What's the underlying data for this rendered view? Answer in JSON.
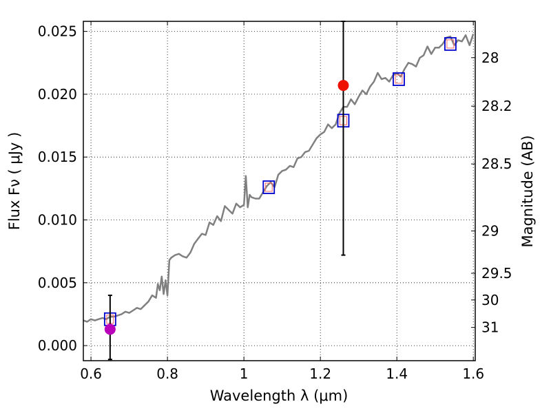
{
  "chart_data": {
    "type": "scatter",
    "xlabel": "Wavelength  λ (μm)",
    "ylabel": "Flux  Fν  ( μJy )",
    "y2label": "Magnitude (AB)",
    "xlim": [
      0.58,
      1.605
    ],
    "ylim": [
      -0.0012,
      0.0258
    ],
    "grid": true,
    "colors": {
      "spectrum": "#808080",
      "model_box": "#0000cc",
      "inner_box": "#ff6666",
      "point_red": "#ee1100",
      "point_magenta": "#bb00bb",
      "errorbar": "#000000"
    },
    "x_ticks": [
      {
        "value": 0.6,
        "label": "0.6"
      },
      {
        "value": 0.8,
        "label": "0.8"
      },
      {
        "value": 1.0,
        "label": "1"
      },
      {
        "value": 1.2,
        "label": "1.2"
      },
      {
        "value": 1.4,
        "label": "1.4"
      },
      {
        "value": 1.6,
        "label": "1.6"
      }
    ],
    "y_ticks": [
      {
        "value": 0.0,
        "label": "0.000"
      },
      {
        "value": 0.005,
        "label": "0.005"
      },
      {
        "value": 0.01,
        "label": "0.010"
      },
      {
        "value": 0.015,
        "label": "0.015"
      },
      {
        "value": 0.02,
        "label": "0.020"
      },
      {
        "value": 0.025,
        "label": "0.025"
      }
    ],
    "y2_ticks": [
      {
        "mag": 28,
        "label": "28"
      },
      {
        "mag": 28.2,
        "label": "28.2"
      },
      {
        "mag": 28.5,
        "label": "28.5"
      },
      {
        "mag": 29,
        "label": "29"
      },
      {
        "mag": 29.5,
        "label": "29.5"
      },
      {
        "mag": 30,
        "label": "30"
      },
      {
        "mag": 31,
        "label": "31"
      }
    ],
    "spectrum": {
      "x": [
        0.58,
        0.59,
        0.6,
        0.61,
        0.62,
        0.63,
        0.64,
        0.65,
        0.66,
        0.67,
        0.68,
        0.69,
        0.7,
        0.71,
        0.72,
        0.73,
        0.74,
        0.75,
        0.76,
        0.77,
        0.775,
        0.78,
        0.785,
        0.79,
        0.795,
        0.8,
        0.805,
        0.81,
        0.82,
        0.83,
        0.84,
        0.85,
        0.86,
        0.87,
        0.88,
        0.89,
        0.9,
        0.91,
        0.92,
        0.93,
        0.94,
        0.95,
        0.96,
        0.97,
        0.98,
        0.99,
        1.0,
        1.005,
        1.01,
        1.015,
        1.02,
        1.03,
        1.04,
        1.05,
        1.06,
        1.07,
        1.08,
        1.09,
        1.1,
        1.11,
        1.12,
        1.13,
        1.14,
        1.15,
        1.16,
        1.17,
        1.18,
        1.19,
        1.2,
        1.21,
        1.22,
        1.23,
        1.24,
        1.25,
        1.26,
        1.27,
        1.28,
        1.29,
        1.3,
        1.31,
        1.32,
        1.33,
        1.34,
        1.35,
        1.36,
        1.37,
        1.38,
        1.39,
        1.4,
        1.41,
        1.42,
        1.43,
        1.44,
        1.45,
        1.46,
        1.47,
        1.48,
        1.49,
        1.5,
        1.51,
        1.52,
        1.53,
        1.54,
        1.55,
        1.56,
        1.57,
        1.58,
        1.59,
        1.6
      ],
      "y": [
        0.002,
        0.0019,
        0.0021,
        0.002,
        0.0021,
        0.0022,
        0.0021,
        0.0023,
        0.0023,
        0.0024,
        0.0025,
        0.0027,
        0.0026,
        0.0028,
        0.003,
        0.0029,
        0.0032,
        0.0035,
        0.004,
        0.0038,
        0.0049,
        0.0044,
        0.0055,
        0.0041,
        0.0052,
        0.004,
        0.0068,
        0.007,
        0.0072,
        0.0073,
        0.0071,
        0.007,
        0.0074,
        0.0081,
        0.0085,
        0.0089,
        0.0088,
        0.0098,
        0.0096,
        0.0103,
        0.0099,
        0.0111,
        0.0108,
        0.0105,
        0.0113,
        0.011,
        0.0112,
        0.0135,
        0.011,
        0.012,
        0.0118,
        0.0117,
        0.0117,
        0.0122,
        0.0127,
        0.013,
        0.0126,
        0.0136,
        0.0139,
        0.014,
        0.0143,
        0.0142,
        0.0149,
        0.015,
        0.0154,
        0.0155,
        0.016,
        0.0165,
        0.0168,
        0.017,
        0.0176,
        0.0173,
        0.0176,
        0.0185,
        0.019,
        0.019,
        0.0196,
        0.0192,
        0.0198,
        0.0203,
        0.02,
        0.0206,
        0.021,
        0.0217,
        0.0212,
        0.0213,
        0.021,
        0.0215,
        0.0217,
        0.0214,
        0.022,
        0.0225,
        0.0224,
        0.0222,
        0.0229,
        0.0231,
        0.0238,
        0.0232,
        0.0237,
        0.0237,
        0.024,
        0.0245,
        0.0246,
        0.0239,
        0.0243,
        0.0242,
        0.0247,
        0.0239,
        0.0248
      ]
    },
    "model_boxes": [
      {
        "x": 0.65,
        "y": 0.0021
      },
      {
        "x": 1.065,
        "y": 0.0126
      },
      {
        "x": 1.26,
        "y": 0.0179
      },
      {
        "x": 1.405,
        "y": 0.0212
      },
      {
        "x": 1.54,
        "y": 0.024
      }
    ],
    "observed_points": [
      {
        "x": 0.65,
        "y": 0.0013,
        "color": "magenta",
        "err_low": -0.0011,
        "err_high": 0.004
      },
      {
        "x": 1.26,
        "y": 0.0207,
        "color": "red",
        "err_low": 0.0072,
        "err_high": 0.0258
      }
    ]
  }
}
